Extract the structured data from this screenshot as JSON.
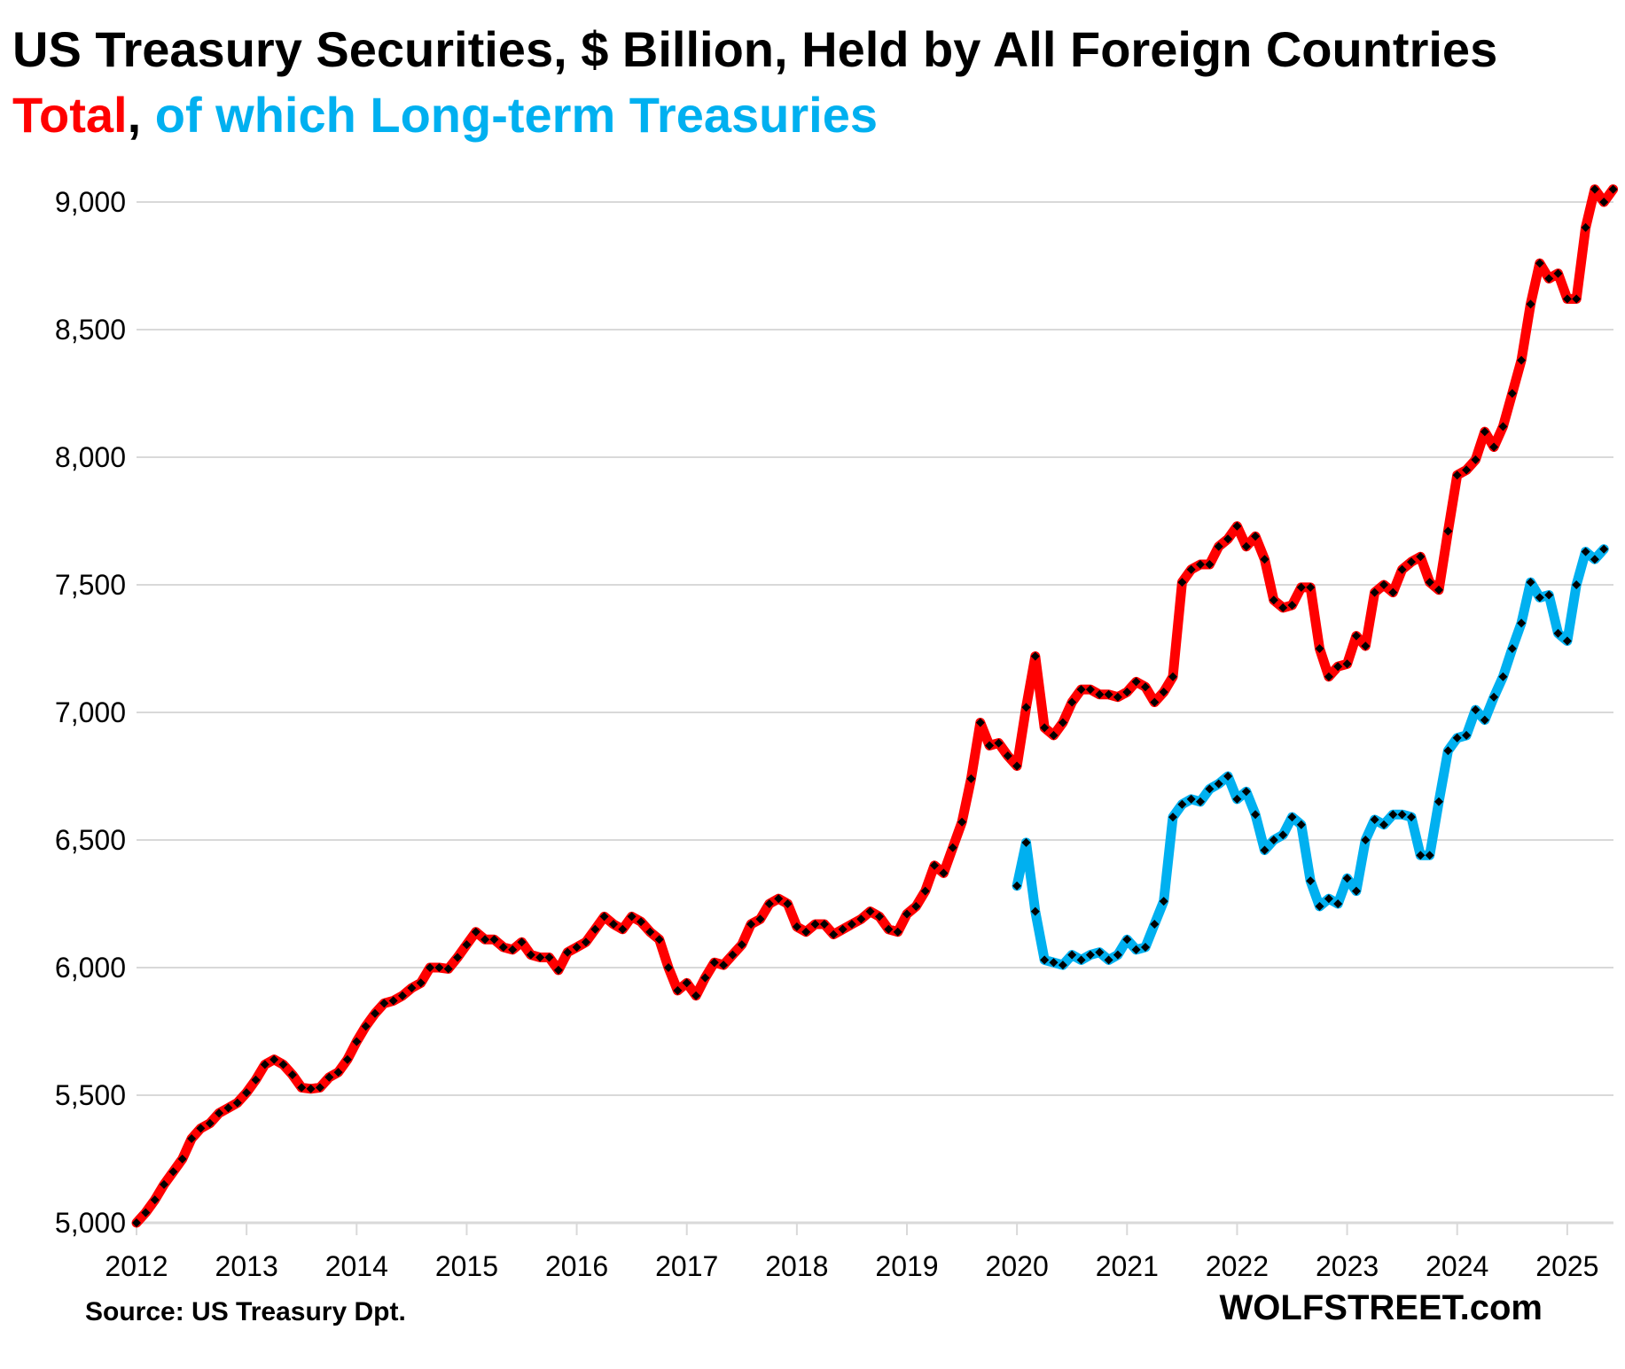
{
  "chart_data": {
    "type": "line",
    "title": "US Treasury Securities, $ Billion, Held by All Foreign Countries",
    "subtitle": {
      "part1": "Total",
      "separator": ", ",
      "part2": "of which Long-term Treasuries"
    },
    "xlabel": "",
    "ylabel": "",
    "xlim": [
      2012.0,
      2025.42
    ],
    "ylim": [
      5000,
      9000
    ],
    "y_ticks": [
      5000,
      5500,
      6000,
      6500,
      7000,
      7500,
      8000,
      8500,
      9000
    ],
    "y_tick_labels": [
      "5,000",
      "5,500",
      "6,000",
      "6,500",
      "7,000",
      "7,500",
      "8,000",
      "8,500",
      "9,000"
    ],
    "x_ticks": [
      2012,
      2013,
      2014,
      2015,
      2016,
      2017,
      2018,
      2019,
      2020,
      2021,
      2022,
      2023,
      2024,
      2025
    ],
    "x_tick_labels": [
      "2012",
      "2013",
      "2014",
      "2015",
      "2016",
      "2017",
      "2018",
      "2019",
      "2020",
      "2021",
      "2022",
      "2023",
      "2024",
      "2025"
    ],
    "grid": "horizontal",
    "legend": "none (series identified by colored subtitle)",
    "colors": {
      "total": "#ff0000",
      "long_term": "#00b0f0",
      "markers": "#000000",
      "grid": "#d9d9d9"
    },
    "series": [
      {
        "name": "Total",
        "color": "#ff0000",
        "start": "2012-01",
        "values": [
          5000,
          5040,
          5090,
          5150,
          5200,
          5250,
          5330,
          5370,
          5390,
          5430,
          5450,
          5470,
          5510,
          5560,
          5620,
          5640,
          5620,
          5580,
          5530,
          5525,
          5530,
          5570,
          5590,
          5640,
          5710,
          5770,
          5820,
          5860,
          5870,
          5890,
          5920,
          5940,
          6000,
          6000,
          5995,
          6040,
          6090,
          6140,
          6110,
          6110,
          6080,
          6070,
          6100,
          6050,
          6040,
          6040,
          5990,
          6060,
          6080,
          6100,
          6150,
          6200,
          6170,
          6150,
          6200,
          6180,
          6140,
          6110,
          6000,
          5910,
          5940,
          5890,
          5960,
          6020,
          6010,
          6050,
          6090,
          6170,
          6190,
          6250,
          6270,
          6250,
          6160,
          6140,
          6170,
          6170,
          6130,
          6150,
          6170,
          6190,
          6220,
          6200,
          6150,
          6140,
          6210,
          6240,
          6300,
          6400,
          6370,
          6470,
          6570,
          6740,
          6960,
          6870,
          6880,
          6830,
          6790,
          7020,
          7220,
          6940,
          6910,
          6960,
          7040,
          7090,
          7090,
          7070,
          7070,
          7060,
          7080,
          7120,
          7100,
          7040,
          7080,
          7140,
          7510,
          7560,
          7580,
          7580,
          7650,
          7680,
          7730,
          7650,
          7690,
          7600,
          7440,
          7410,
          7420,
          7490,
          7490,
          7250,
          7140,
          7180,
          7190,
          7300,
          7260,
          7470,
          7500,
          7470,
          7560,
          7590,
          7610,
          7510,
          7480,
          7710,
          7930,
          7950,
          7990,
          8100,
          8040,
          8120,
          8250,
          8380,
          8600,
          8760,
          8700,
          8720,
          8620,
          8620,
          8900,
          9050,
          9000,
          9050
        ]
      },
      {
        "name": "of which Long-term Treasuries",
        "color": "#00b0f0",
        "start": "2020-01",
        "values": [
          6320,
          6490,
          6220,
          6030,
          6020,
          6010,
          6050,
          6030,
          6050,
          6060,
          6030,
          6050,
          6110,
          6070,
          6080,
          6170,
          6260,
          6590,
          6640,
          6660,
          6650,
          6700,
          6720,
          6750,
          6660,
          6690,
          6600,
          6460,
          6500,
          6520,
          6590,
          6560,
          6340,
          6240,
          6270,
          6250,
          6350,
          6300,
          6500,
          6580,
          6560,
          6600,
          6600,
          6590,
          6440,
          6440,
          6650,
          6850,
          6900,
          6910,
          7010,
          6970,
          7060,
          7140,
          7250,
          7350,
          7510,
          7450,
          7460,
          7310,
          7280,
          7500,
          7630,
          7600,
          7640
        ]
      }
    ]
  },
  "source": "Source: US Treasury  Dpt.",
  "brand": "WOLFSTREET.com"
}
